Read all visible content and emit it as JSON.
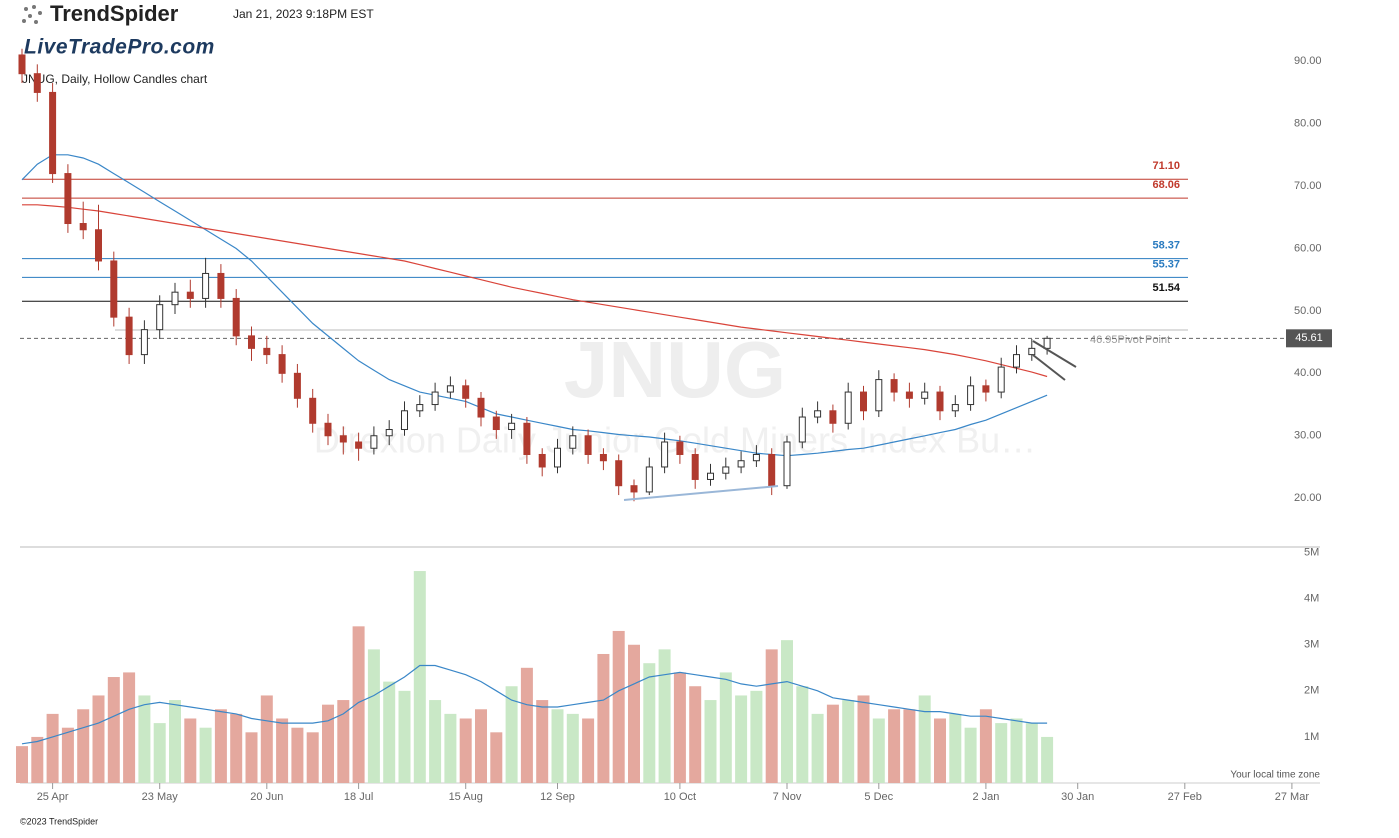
{
  "header": {
    "brand": "TrendSpider",
    "timestamp": "Jan 21, 2023 9:18PM EST",
    "site": "LiveTradePro.com",
    "copyright": "©2023 TrendSpider",
    "timezone_note": "Your local time zone"
  },
  "chart_data": {
    "type": "candlestick",
    "title": "JNUG, Daily, Hollow Candles chart",
    "watermark": "JNUG",
    "watermark_subtitle": "Direxion Daily Junior Gold Miners Index Bu…",
    "categories": [
      null,
      null,
      "25 Apr",
      null,
      null,
      null,
      null,
      null,
      null,
      "23 May",
      null,
      null,
      null,
      null,
      null,
      null,
      "20 Jun",
      null,
      null,
      null,
      null,
      null,
      "18 Jul",
      null,
      null,
      null,
      null,
      null,
      null,
      "15 Aug",
      null,
      null,
      null,
      null,
      null,
      "12 Sep",
      null,
      null,
      null,
      null,
      null,
      null,
      null,
      "10 Oct",
      null,
      null,
      null,
      null,
      null,
      null,
      "7 Nov",
      null,
      null,
      null,
      null,
      null,
      "5 Dec",
      null,
      null,
      null,
      null,
      null,
      null,
      "2 Jan",
      null,
      null,
      null,
      null,
      null,
      "30 Jan",
      null,
      null,
      null,
      null,
      null,
      null,
      "27 Feb",
      null,
      null,
      null,
      null,
      null,
      null,
      "27 Mar",
      null
    ],
    "open": [
      91,
      88,
      85,
      72,
      64,
      63,
      58,
      49,
      43,
      47,
      51,
      53,
      52,
      56,
      52,
      46,
      44,
      43,
      40,
      36,
      32,
      30,
      29,
      28,
      30,
      31,
      34,
      35,
      37,
      38,
      36,
      33,
      31,
      32,
      27,
      25,
      28,
      30,
      27,
      26,
      22,
      21,
      25,
      29,
      27,
      23,
      24,
      25,
      26,
      27,
      22,
      29,
      33,
      34,
      32,
      37,
      34,
      39,
      37,
      36,
      37,
      34,
      35,
      38,
      37,
      41,
      43,
      44,
      null,
      null,
      null,
      null,
      null,
      null,
      null,
      null,
      null,
      null,
      null,
      null,
      null,
      null,
      null,
      null,
      null
    ],
    "high": [
      92,
      89.5,
      86.5,
      73.5,
      67.5,
      67,
      59.5,
      50.5,
      48.5,
      52.5,
      54.5,
      55,
      58.5,
      57.5,
      53.5,
      47.5,
      46,
      44.5,
      41.5,
      37.5,
      33.5,
      31.5,
      30.5,
      31.5,
      32.5,
      35.5,
      36.5,
      38.5,
      39.5,
      39,
      37,
      34,
      33.5,
      33,
      28,
      29.5,
      31.5,
      31,
      28,
      27,
      23,
      26.5,
      30.5,
      30,
      28,
      25.5,
      26.5,
      27.5,
      28.5,
      28,
      30,
      34.5,
      35.5,
      35,
      38.5,
      38,
      40.5,
      40,
      38.5,
      38.5,
      38,
      36.5,
      39.5,
      39,
      42.5,
      44.5,
      45.5,
      46,
      null,
      null,
      null,
      null,
      null,
      null,
      null,
      null,
      null,
      null,
      null,
      null,
      null,
      null,
      null,
      null,
      null
    ],
    "low": [
      86.5,
      83.5,
      70.5,
      62.5,
      61.5,
      56.5,
      47.5,
      41.5,
      41.5,
      45.5,
      49.5,
      50.5,
      50.5,
      50.5,
      44.5,
      42,
      41.5,
      38.5,
      34.5,
      30.5,
      28.5,
      27,
      26,
      27,
      28.5,
      30,
      33,
      34,
      36,
      34.5,
      31.5,
      29.5,
      29.5,
      25.5,
      23.5,
      24,
      27,
      25.5,
      24.5,
      20.5,
      19.5,
      20.5,
      24,
      25.5,
      21.5,
      22,
      23,
      24,
      25,
      20.5,
      21.5,
      28,
      32,
      30.5,
      31,
      32.5,
      33,
      35.5,
      34.5,
      35,
      32.5,
      33,
      34,
      35.5,
      36,
      40,
      42,
      43,
      null,
      null,
      null,
      null,
      null,
      null,
      null,
      null,
      null,
      null,
      null,
      null,
      null,
      null,
      null,
      null,
      null
    ],
    "close": [
      88,
      85,
      72,
      64,
      63,
      58,
      49,
      43,
      47,
      51,
      53,
      52,
      56,
      52,
      46,
      44,
      43,
      40,
      36,
      32,
      30,
      29,
      28,
      30,
      31,
      34,
      35,
      37,
      38,
      36,
      33,
      31,
      32,
      27,
      25,
      28,
      30,
      27,
      26,
      22,
      21,
      25,
      29,
      27,
      23,
      24,
      25,
      26,
      27,
      22,
      29,
      33,
      34,
      32,
      37,
      34,
      39,
      37,
      36,
      37,
      34,
      35,
      38,
      37,
      41,
      43,
      44,
      45.61,
      null,
      null,
      null,
      null,
      null,
      null,
      null,
      null,
      null,
      null,
      null,
      null,
      null,
      null,
      null,
      null,
      null
    ],
    "up_color": "#333333",
    "down_color": "#b03a2e",
    "moving_averages": [
      {
        "color": "#3a87c8",
        "values": [
          71,
          73.5,
          75,
          75,
          74.5,
          73.5,
          72,
          70.5,
          69,
          67.5,
          66,
          64.5,
          63,
          61.5,
          60,
          58,
          55.5,
          53,
          50.5,
          48,
          46,
          44,
          42,
          40.5,
          39,
          38,
          37,
          36.5,
          36,
          35.5,
          34.5,
          33.5,
          33,
          32.5,
          32,
          31.5,
          31,
          30.8,
          30.5,
          30.2,
          30,
          29.8,
          29.5,
          29.2,
          28.8,
          28.4,
          28,
          27.6,
          27.2,
          27,
          26.8,
          27,
          27.2,
          27.5,
          27.8,
          28,
          28.5,
          29,
          29.5,
          30,
          30.5,
          31,
          31.8,
          32.5,
          33.5,
          34.5,
          35.5,
          36.5,
          null,
          null,
          null,
          null,
          null,
          null,
          null,
          null,
          null,
          null,
          null,
          null,
          null,
          null,
          null,
          null,
          null
        ]
      },
      {
        "color": "#d9443a",
        "values": [
          67,
          67,
          66.8,
          66.6,
          66.3,
          66,
          65.6,
          65.2,
          64.8,
          64.4,
          64,
          63.6,
          63.2,
          62.8,
          62.4,
          62,
          61.6,
          61.2,
          60.8,
          60.4,
          60,
          59.6,
          59.2,
          58.8,
          58.4,
          58,
          57.4,
          56.8,
          56.2,
          55.6,
          55,
          54.4,
          53.8,
          53.3,
          52.8,
          52.3,
          51.8,
          51.4,
          51,
          50.6,
          50.2,
          49.8,
          49.4,
          49,
          48.6,
          48.2,
          47.8,
          47.4,
          47.1,
          46.8,
          46.5,
          46.2,
          45.9,
          45.6,
          45.3,
          45,
          44.7,
          44.4,
          44.1,
          43.8,
          43.4,
          43,
          42.5,
          42,
          41.4,
          40.8,
          40.2,
          39.5,
          null,
          null,
          null,
          null,
          null,
          null,
          null,
          null,
          null,
          null,
          null,
          null,
          null,
          null,
          null,
          null,
          null
        ]
      }
    ],
    "ylim": [
      12.5,
      95
    ],
    "yticks": [
      {
        "value": 20,
        "label": "20.00"
      },
      {
        "value": 30,
        "label": "30.00"
      },
      {
        "value": 40,
        "label": "40.00"
      },
      {
        "value": 50,
        "label": "50.00"
      },
      {
        "value": 60,
        "label": "60.00"
      },
      {
        "value": 70,
        "label": "70.00"
      },
      {
        "value": 80,
        "label": "80.00"
      },
      {
        "value": 90,
        "label": "90.00"
      }
    ],
    "levels": [
      {
        "value": 71.1,
        "label": "71.10",
        "color": "#c0392b"
      },
      {
        "value": 68.06,
        "label": "68.06",
        "color": "#c0392b"
      },
      {
        "value": 58.37,
        "label": "58.37",
        "color": "#2a7bc0"
      },
      {
        "value": 55.37,
        "label": "55.37",
        "color": "#2a7bc0"
      },
      {
        "value": 51.54,
        "label": "51.54",
        "color": "#111111"
      }
    ],
    "pivot": {
      "value": 46.95,
      "label": "46.95",
      "text": "Pivot Point"
    },
    "last_price": 45.61,
    "volume": {
      "up_color": "#c9e8c6",
      "down_color": "#e4a89e",
      "ma_color": "#3a87c8",
      "values": [
        800000,
        1000000,
        1500000,
        1200000,
        1600000,
        1900000,
        2300000,
        2400000,
        1900000,
        1300000,
        1800000,
        1400000,
        1200000,
        1600000,
        1500000,
        1100000,
        1900000,
        1400000,
        1200000,
        1100000,
        1700000,
        1800000,
        3400000,
        2900000,
        2200000,
        2000000,
        4600000,
        1800000,
        1500000,
        1400000,
        1600000,
        1100000,
        2100000,
        2500000,
        1800000,
        1600000,
        1500000,
        1400000,
        2800000,
        3300000,
        3000000,
        2600000,
        2900000,
        2400000,
        2100000,
        1800000,
        2400000,
        1900000,
        2000000,
        2900000,
        3100000,
        2100000,
        1500000,
        1700000,
        1800000,
        1900000,
        1400000,
        1600000,
        1600000,
        1900000,
        1400000,
        1500000,
        1200000,
        1600000,
        1300000,
        1400000,
        1300000,
        1000000,
        null,
        null,
        null,
        null,
        null,
        null,
        null,
        null,
        null,
        null,
        null,
        null,
        null,
        null,
        null,
        null,
        null
      ],
      "ma": [
        850000,
        900000,
        1000000,
        1100000,
        1200000,
        1300000,
        1450000,
        1600000,
        1700000,
        1750000,
        1700000,
        1650000,
        1600000,
        1550000,
        1500000,
        1400000,
        1350000,
        1300000,
        1300000,
        1300000,
        1350000,
        1500000,
        1750000,
        1900000,
        2100000,
        2300000,
        2550000,
        2550000,
        2450000,
        2350000,
        2200000,
        2000000,
        1800000,
        1700000,
        1650000,
        1650000,
        1700000,
        1750000,
        1800000,
        2000000,
        2150000,
        2300000,
        2350000,
        2400000,
        2350000,
        2300000,
        2250000,
        2150000,
        2100000,
        2150000,
        2200000,
        2100000,
        2000000,
        1850000,
        1800000,
        1750000,
        1700000,
        1650000,
        1600000,
        1550000,
        1550000,
        1500000,
        1450000,
        1450000,
        1400000,
        1350000,
        1300000,
        1300000,
        null,
        null,
        null,
        null,
        null,
        null,
        null,
        null,
        null,
        null,
        null,
        null,
        null,
        null,
        null,
        null,
        null
      ],
      "ylim": [
        0,
        5100000
      ],
      "yticks": [
        {
          "value": 1000000,
          "label": "1M"
        },
        {
          "value": 2000000,
          "label": "2M"
        },
        {
          "value": 3000000,
          "label": "3M"
        },
        {
          "value": 4000000,
          "label": "4M"
        },
        {
          "value": 5000000,
          "label": "5M"
        }
      ]
    }
  }
}
